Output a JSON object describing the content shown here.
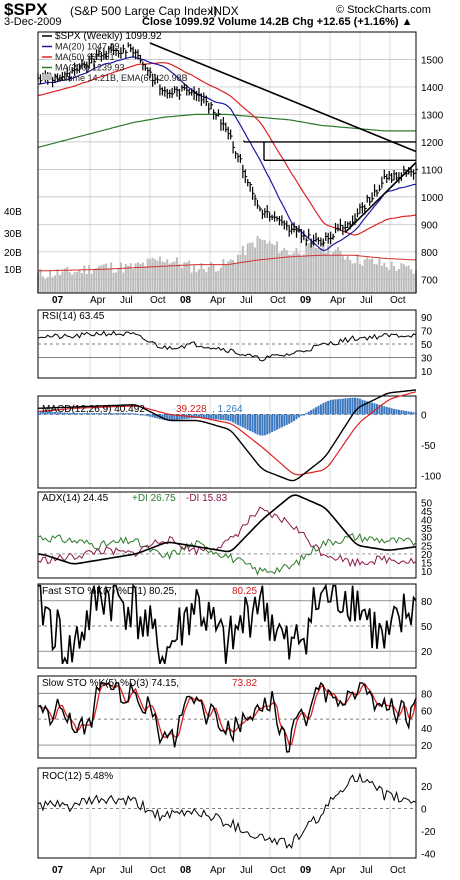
{
  "header": {
    "symbol": "$SPX",
    "name": "(S&P 500 Large Cap Index)",
    "exchange": "INDX",
    "date": "3-Dec-2009",
    "logo": "© StockCharts.com",
    "quote": "Close 1099.92  Volume 14.2B  Chg +12.65 (+1.16%) ▲"
  },
  "colors": {
    "price": "#000000",
    "ma20": "#1a1aa0",
    "ma50": "#dd2222",
    "ma200": "#2c7a2c",
    "volume_bar": "#bcbcbc",
    "volume_ema": "#d03030",
    "hist": "#3b78c0",
    "frame": "#000000",
    "grid": "#bbbbbb",
    "ref": "#555555"
  },
  "time_axis": {
    "labels": [
      "07",
      "Apr",
      "Jul",
      "Oct",
      "08",
      "Apr",
      "Jul",
      "Oct",
      "09",
      "Apr",
      "Jul",
      "Oct"
    ],
    "bold": [
      true,
      false,
      false,
      false,
      true,
      false,
      false,
      false,
      true,
      false,
      false,
      false
    ]
  },
  "price_panel": {
    "legend": [
      "$SPX (Weekly) 1099.92",
      "MA(20) 1047.49",
      "MA(50) 935.01",
      "MA(200) 1239.93",
      "Volume 14.21B, EMA(60) 20.98B"
    ],
    "y_ticks": [
      "1500",
      "1400",
      "1300",
      "1200",
      "1100",
      "1000",
      "900",
      "800",
      "700"
    ],
    "volume_ticks": [
      "40B",
      "30B",
      "20B",
      "10B"
    ]
  },
  "chart_data": {
    "type": "line",
    "periodicity": "weekly",
    "x": [
      "2007-01",
      "2007-04",
      "2007-07",
      "2007-10",
      "2008-01",
      "2008-04",
      "2008-07",
      "2008-10",
      "2009-01",
      "2009-04",
      "2009-07",
      "2009-10",
      "2009-12"
    ],
    "series": [
      {
        "name": "$SPX (Weekly)",
        "values": [
          1430,
          1440,
          1520,
          1540,
          1380,
          1390,
          1250,
          960,
          880,
          830,
          920,
          1060,
          1099.92
        ]
      },
      {
        "name": "MA(20)",
        "values": [
          1410,
          1430,
          1480,
          1510,
          1470,
          1370,
          1330,
          1130,
          900,
          800,
          880,
          1020,
          1047.49
        ]
      },
      {
        "name": "MA(50)",
        "values": [
          1370,
          1400,
          1440,
          1480,
          1490,
          1430,
          1370,
          1270,
          1080,
          900,
          860,
          920,
          935.01
        ]
      },
      {
        "name": "MA(200)",
        "values": [
          1180,
          1210,
          1240,
          1270,
          1290,
          1300,
          1300,
          1290,
          1280,
          1260,
          1250,
          1240,
          1239.93
        ]
      },
      {
        "name": "Volume",
        "values": [
          12,
          13,
          17,
          16,
          22,
          16,
          18,
          34,
          26,
          30,
          22,
          18,
          14.21
        ]
      },
      {
        "name": "EMA(60)",
        "values": [
          14,
          14.5,
          15,
          16,
          17,
          18,
          18,
          21,
          23,
          24,
          24,
          22,
          20.98
        ]
      }
    ],
    "ylim": [
      650,
      1600
    ]
  },
  "indicators": {
    "rsi": {
      "label": "RSI(14) 63.45",
      "ticks": [
        "90",
        "70",
        "50",
        "30",
        "10"
      ],
      "values": [
        62,
        60,
        66,
        64,
        44,
        50,
        42,
        28,
        35,
        48,
        58,
        62,
        63.45
      ]
    },
    "macd": {
      "label_main": "MACD(12,26,9) 40.492",
      "label_signal": "39.228",
      "label_hist": ", 1.264",
      "ticks": [
        "0",
        "-50",
        "-100"
      ],
      "macd": [
        10,
        12,
        14,
        16,
        -10,
        -10,
        -25,
        -90,
        -110,
        -70,
        10,
        35,
        40.492
      ],
      "signal": [
        5,
        10,
        12,
        14,
        0,
        -5,
        -15,
        -55,
        -100,
        -90,
        -15,
        25,
        39.228
      ]
    },
    "adx": {
      "label_adx": "ADX(14) 24.45",
      "label_pdi": "+DI 26.75",
      "label_mdi": "-DI 15.83",
      "ticks": [
        "50",
        "45",
        "40",
        "35",
        "30",
        "25",
        "20",
        "15",
        "10"
      ],
      "adx": [
        20,
        14,
        17,
        20,
        27,
        24,
        21,
        40,
        55,
        47,
        25,
        22,
        24.45
      ],
      "pdi": [
        30,
        28,
        25,
        28,
        18,
        26,
        19,
        10,
        12,
        26,
        30,
        28,
        26.75
      ],
      "mdi": [
        16,
        18,
        22,
        20,
        29,
        22,
        26,
        45,
        38,
        21,
        15,
        17,
        15.83
      ]
    },
    "fsto": {
      "label_k": "Fast STO %K(7) %D(1) 80.25,",
      "label_d": "80.25",
      "ticks": [
        "80",
        "50",
        "20"
      ],
      "values": [
        85,
        15,
        90,
        75,
        12,
        80,
        20,
        88,
        15,
        85,
        90,
        25,
        80.25
      ]
    },
    "ssto": {
      "label_k": "Slow STO %K(5) %D(3) 74.15,",
      "label_d": "73.82",
      "ticks": [
        "80",
        "60",
        "40",
        "20"
      ],
      "k": [
        80,
        30,
        85,
        75,
        20,
        75,
        25,
        80,
        25,
        75,
        85,
        55,
        74.15
      ],
      "d": [
        78,
        35,
        82,
        73,
        25,
        72,
        30,
        78,
        30,
        72,
        82,
        60,
        73.82
      ]
    },
    "roc": {
      "label": "ROC(12) 5.48%",
      "ticks": [
        "20",
        "0",
        "-20",
        "-40"
      ],
      "values": [
        3,
        2,
        8,
        6,
        -8,
        -2,
        -12,
        -25,
        -32,
        -5,
        30,
        12,
        5.48
      ]
    }
  }
}
